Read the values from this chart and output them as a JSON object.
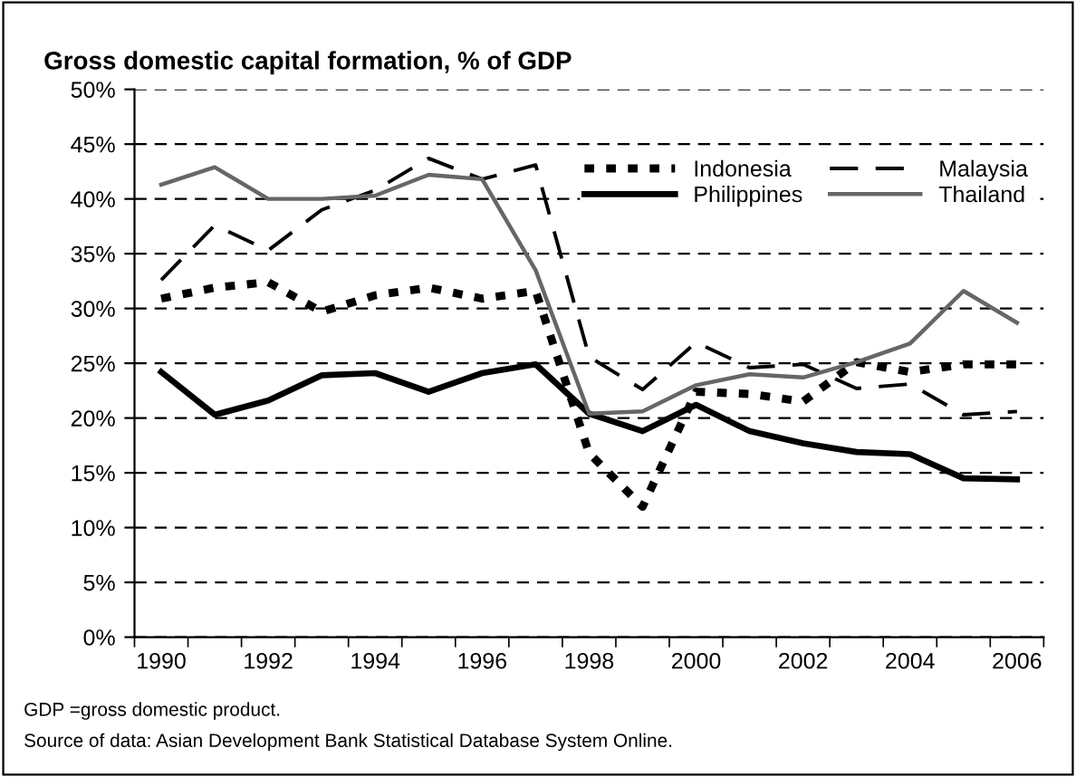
{
  "chart_data": {
    "type": "line",
    "title": "Gross domestic capital formation, % of GDP",
    "categories": [
      "1990",
      null,
      "1992",
      null,
      "1994",
      null,
      "1996",
      null,
      "1998",
      null,
      "2000",
      null,
      "2002",
      null,
      "2004",
      null,
      "2006"
    ],
    "series": [
      {
        "name": "Indonesia",
        "color": "#000000",
        "line_style": "dotted",
        "values": [
          30.9,
          31.9,
          32.4,
          29.7,
          31.2,
          31.9,
          30.9,
          31.6,
          16.8,
          11.9,
          22.4,
          22.2,
          21.5,
          25.1,
          24.2,
          24.9,
          24.9
        ]
      },
      {
        "name": "Malaysia",
        "color": "#000000",
        "line_style": "dashed",
        "values": [
          32.6,
          37.6,
          35.3,
          39.0,
          40.8,
          43.7,
          41.8,
          43.1,
          25.6,
          22.6,
          26.9,
          24.6,
          24.9,
          22.7,
          23.1,
          20.3,
          20.6
        ]
      },
      {
        "name": "Philippines",
        "color": "#000000",
        "line_style": "solid",
        "values": [
          24.2,
          20.3,
          21.6,
          23.9,
          24.1,
          22.4,
          24.1,
          24.9,
          20.4,
          18.8,
          21.2,
          18.8,
          17.7,
          16.9,
          16.7,
          14.5,
          14.4
        ]
      },
      {
        "name": "Thailand",
        "color": "#666666",
        "line_style": "solid",
        "values": [
          41.3,
          42.9,
          40.0,
          40.0,
          40.3,
          42.2,
          41.8,
          33.5,
          20.4,
          20.6,
          23.0,
          24.0,
          23.7,
          25.1,
          26.8,
          31.6,
          28.7
        ]
      }
    ],
    "ylim": [
      0,
      50
    ],
    "yticks": [
      {
        "value": 0,
        "label": "0%"
      },
      {
        "value": 5,
        "label": "5%"
      },
      {
        "value": 10,
        "label": "10%"
      },
      {
        "value": 15,
        "label": "15%"
      },
      {
        "value": 20,
        "label": "20%"
      },
      {
        "value": 25,
        "label": "25%"
      },
      {
        "value": 30,
        "label": "30%"
      },
      {
        "value": 35,
        "label": "35%"
      },
      {
        "value": 40,
        "label": "40%"
      },
      {
        "value": 45,
        "label": "45%"
      },
      {
        "value": 50,
        "label": "50%"
      }
    ],
    "grid": "y",
    "legend": "top right",
    "annotations": [
      "GDP =gross domestic product.",
      "Source of data: Asian Development Bank Statistical Database System Online."
    ]
  }
}
